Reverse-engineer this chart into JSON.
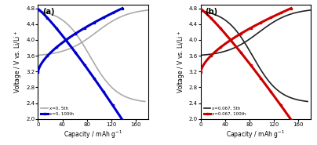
{
  "panel_a": {
    "label": "(a)",
    "ylabel": "Voltage / V vs. Li/Li$^+$",
    "xlabel": "Capacity / mAh g$^{-1}$",
    "xlim": [
      0,
      180
    ],
    "ylim": [
      2.0,
      4.9
    ],
    "yticks": [
      2.0,
      2.4,
      2.8,
      3.2,
      3.6,
      4.0,
      4.4,
      4.8
    ],
    "xticks": [
      0,
      40,
      80,
      120,
      160
    ],
    "legend": [
      "x=0, 5th",
      "x=0, 100th"
    ],
    "colors": [
      "#aaaaaa",
      "#0000cc"
    ],
    "linewidths": [
      1.2,
      2.2
    ],
    "x_max_100": 138
  },
  "panel_b": {
    "label": "(b)",
    "ylabel": "Voltage / V vs. Li/Li$^+$",
    "xlabel": "Capacity / mAh g$^{-1}$",
    "xlim": [
      0,
      180
    ],
    "ylim": [
      2.0,
      4.9
    ],
    "yticks": [
      2.0,
      2.4,
      2.8,
      3.2,
      3.6,
      4.0,
      4.4,
      4.8
    ],
    "xticks": [
      0,
      40,
      80,
      120,
      160
    ],
    "legend": [
      "x=0.067, 5th",
      "x=0.067, 100th"
    ],
    "colors": [
      "#222222",
      "#cc0000"
    ],
    "linewidths": [
      1.2,
      2.2
    ],
    "x_max_100": 148
  }
}
